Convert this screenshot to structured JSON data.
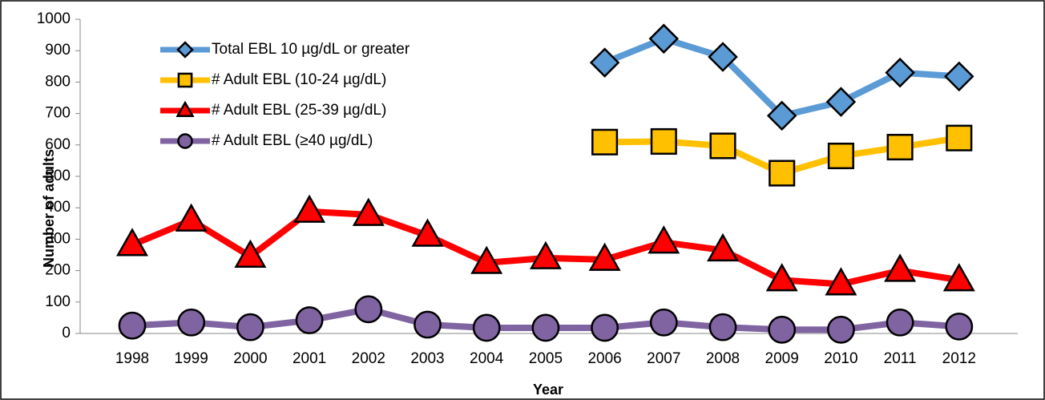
{
  "chart_data": {
    "type": "line",
    "x_label": "Year",
    "y_label": "Number of adults",
    "categories": [
      "1998",
      "1999",
      "2000",
      "2001",
      "2002",
      "2003",
      "2004",
      "2005",
      "2006",
      "2007",
      "2008",
      "2009",
      "2010",
      "2011",
      "2012"
    ],
    "series": [
      {
        "name": "Total EBL 10 µg/dL or greater",
        "color": "#5b9bd5",
        "marker": "diamond",
        "values": [
          null,
          null,
          null,
          null,
          null,
          null,
          null,
          null,
          862,
          938,
          880,
          693,
          737,
          830,
          818
        ]
      },
      {
        "name": "# Adult EBL (10-24 µg/dL)",
        "color": "#ffc000",
        "marker": "square",
        "values": [
          null,
          null,
          null,
          null,
          null,
          null,
          null,
          null,
          609,
          611,
          597,
          510,
          565,
          593,
          622
        ]
      },
      {
        "name": "# Adult EBL (25-39  µg/dL)",
        "color": "#ff0000",
        "marker": "triangle",
        "values": [
          282,
          360,
          245,
          388,
          378,
          312,
          225,
          240,
          235,
          290,
          265,
          170,
          157,
          200,
          170
        ]
      },
      {
        "name": "# Adult EBL (≥40 µg/dL)",
        "color": "#8064a2",
        "marker": "circle",
        "values": [
          25,
          35,
          20,
          42,
          77,
          28,
          18,
          18,
          18,
          35,
          20,
          12,
          12,
          35,
          22
        ]
      }
    ],
    "ylim": [
      0,
      1000
    ],
    "yticks": [
      0,
      100,
      200,
      300,
      400,
      500,
      600,
      700,
      800,
      900,
      1000
    ],
    "grid": false,
    "legend_position": "upper left"
  }
}
